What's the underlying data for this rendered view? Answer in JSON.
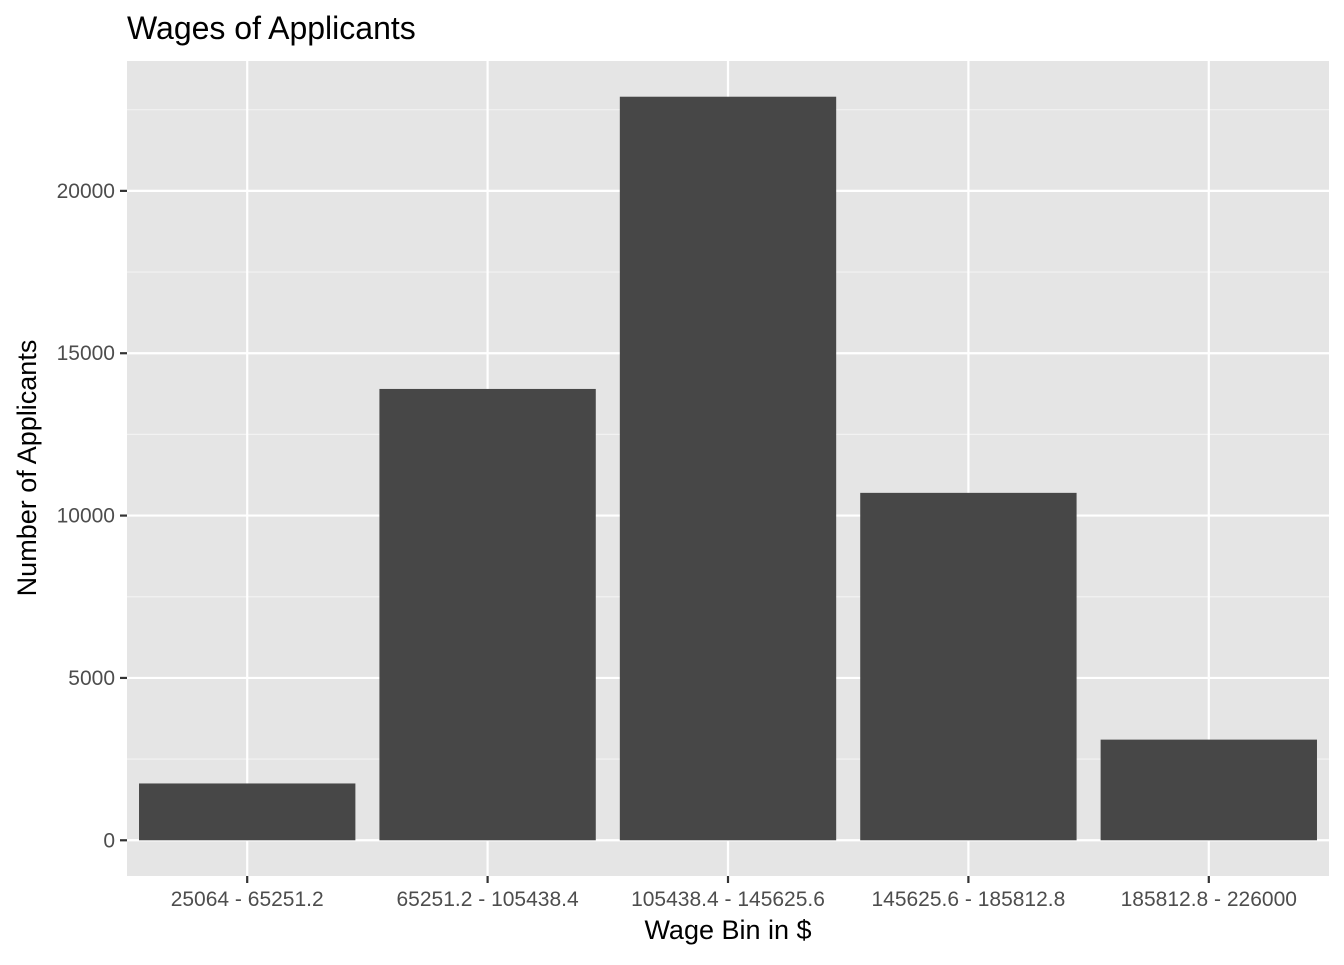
{
  "chart_data": {
    "type": "bar",
    "title": "Wages of Applicants",
    "xlabel": "Wage Bin in $",
    "ylabel": "Number of Applicants",
    "categories": [
      "25064 - 65251.2",
      "65251.2 - 105438.4",
      "105438.4 - 145625.6",
      "145625.6 - 185812.8",
      "185812.8 - 226000"
    ],
    "values": [
      1750,
      13900,
      22900,
      10700,
      3100
    ],
    "yticks": [
      0,
      5000,
      10000,
      15000,
      20000
    ],
    "ylim": [
      -1100,
      24000
    ],
    "grid": true,
    "legend": "none",
    "colors": {
      "bar": "#474747",
      "panel": "#e5e5e5",
      "grid_major": "#ffffff",
      "grid_minor": "#f2f2f2",
      "tick_text": "#4d4d4d",
      "text": "#000000"
    }
  }
}
